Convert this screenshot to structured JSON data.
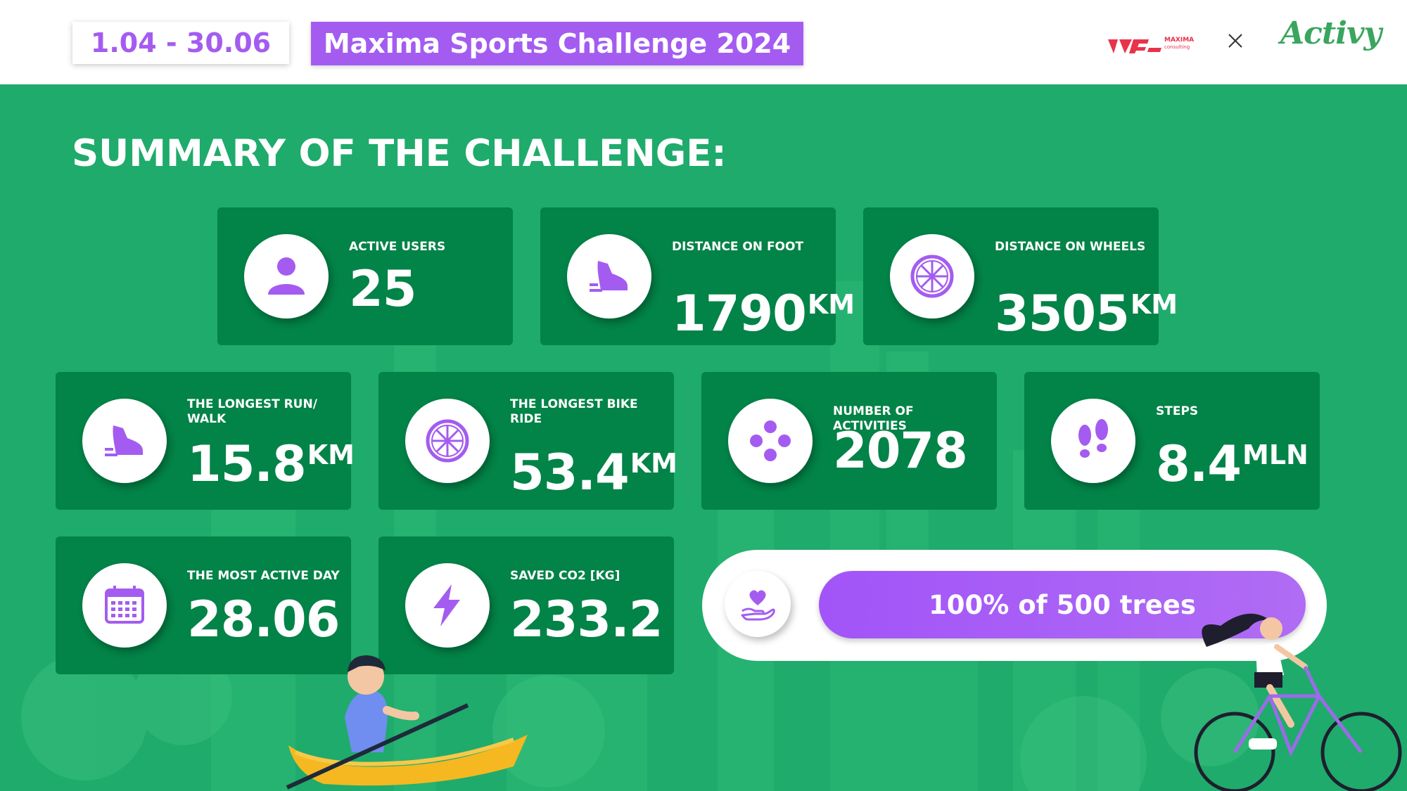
{
  "header": {
    "date_range": "1.04 - 30.06",
    "title": "Maxima Sports Challenge 2024",
    "brand_name": "MAXIMA",
    "brand_sub": "consulting",
    "partner_name": "Activy"
  },
  "summary_title": "SUMMARY OF THE CHALLENGE:",
  "stats": {
    "active_users": {
      "label": "ACTIVE USERS",
      "value": "25",
      "icon": "user-icon"
    },
    "distance_foot": {
      "label": "DISTANCE ON FOOT",
      "value": "1790",
      "unit": "KM",
      "icon": "shoe-icon"
    },
    "distance_wheels": {
      "label": "DISTANCE ON WHEELS",
      "value": "3505",
      "unit": "KM",
      "icon": "wheel-icon"
    },
    "longest_run": {
      "label": "THE LONGEST RUN/ WALK",
      "value": "15.8",
      "unit": "KM",
      "icon": "shoe-icon"
    },
    "longest_bike": {
      "label": "THE LONGEST BIKE RIDE",
      "value": "53.4",
      "unit": "KM",
      "icon": "wheel-icon"
    },
    "activities": {
      "label": "NUMBER OF ACTIVITIES",
      "value": "2078",
      "icon": "activities-icon"
    },
    "steps": {
      "label": "STEPS",
      "value": "8.4",
      "unit": "MLN",
      "icon": "footprints-icon"
    },
    "active_day": {
      "label": "THE MOST ACTIVE DAY",
      "value": "28.06",
      "icon": "calendar-icon"
    },
    "co2": {
      "label": "SAVED CO2 [KG]",
      "value": "233.2",
      "icon": "lightning-icon"
    }
  },
  "trees": {
    "text": "100% of 500 trees",
    "progress_percent": 100,
    "icon": "heart-hand-icon"
  },
  "colors": {
    "background": "#1fab6b",
    "card": "#028347",
    "accent": "#a45cf0"
  }
}
